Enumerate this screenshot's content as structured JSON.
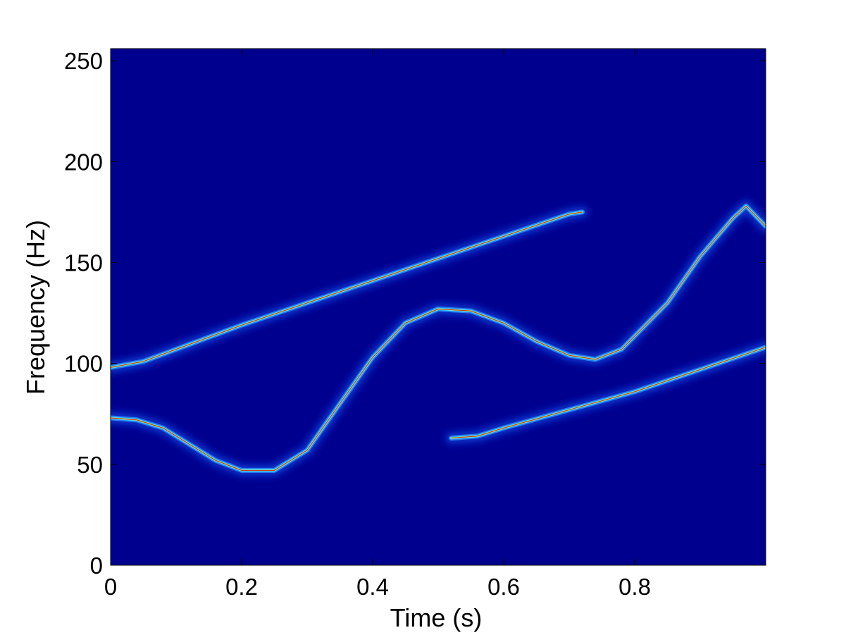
{
  "chart_data": {
    "type": "heatmap",
    "title": "",
    "xlabel": "Time (s)",
    "ylabel": "Frequency (Hz)",
    "xlim": [
      0,
      1
    ],
    "ylim": [
      0,
      256
    ],
    "x_ticks": [
      0,
      0.2,
      0.4,
      0.6,
      0.8
    ],
    "x_tick_labels": [
      "0",
      "0.2",
      "0.4",
      "0.6",
      "0.8"
    ],
    "y_ticks": [
      0,
      50,
      100,
      150,
      200,
      250
    ],
    "y_tick_labels": [
      "0",
      "50",
      "100",
      "150",
      "200",
      "250"
    ],
    "grid": false,
    "colormap": "jet",
    "background_color": "#00008f",
    "series": [
      {
        "points": [
          [
            0.0,
            98
          ],
          [
            0.05,
            101
          ],
          [
            0.1,
            107
          ],
          [
            0.2,
            119
          ],
          [
            0.3,
            130
          ],
          [
            0.4,
            141
          ],
          [
            0.5,
            152
          ],
          [
            0.6,
            163
          ],
          [
            0.7,
            174
          ],
          [
            0.72,
            175
          ]
        ]
      },
      {
        "points": [
          [
            0.0,
            73
          ],
          [
            0.04,
            72
          ],
          [
            0.08,
            68
          ],
          [
            0.12,
            60
          ],
          [
            0.16,
            52
          ],
          [
            0.2,
            47
          ],
          [
            0.25,
            47
          ],
          [
            0.3,
            57
          ],
          [
            0.35,
            80
          ],
          [
            0.4,
            103
          ],
          [
            0.45,
            120
          ],
          [
            0.5,
            127
          ],
          [
            0.55,
            126
          ],
          [
            0.6,
            120
          ],
          [
            0.65,
            111
          ],
          [
            0.7,
            104
          ],
          [
            0.74,
            102
          ],
          [
            0.78,
            107
          ],
          [
            0.85,
            130
          ],
          [
            0.9,
            153
          ],
          [
            0.95,
            172
          ],
          [
            0.97,
            178
          ],
          [
            1.0,
            168
          ]
        ]
      },
      {
        "points": [
          [
            0.52,
            63
          ],
          [
            0.56,
            64
          ],
          [
            0.6,
            68
          ],
          [
            0.7,
            77
          ],
          [
            0.8,
            86
          ],
          [
            0.9,
            97
          ],
          [
            1.0,
            108
          ]
        ]
      }
    ]
  }
}
